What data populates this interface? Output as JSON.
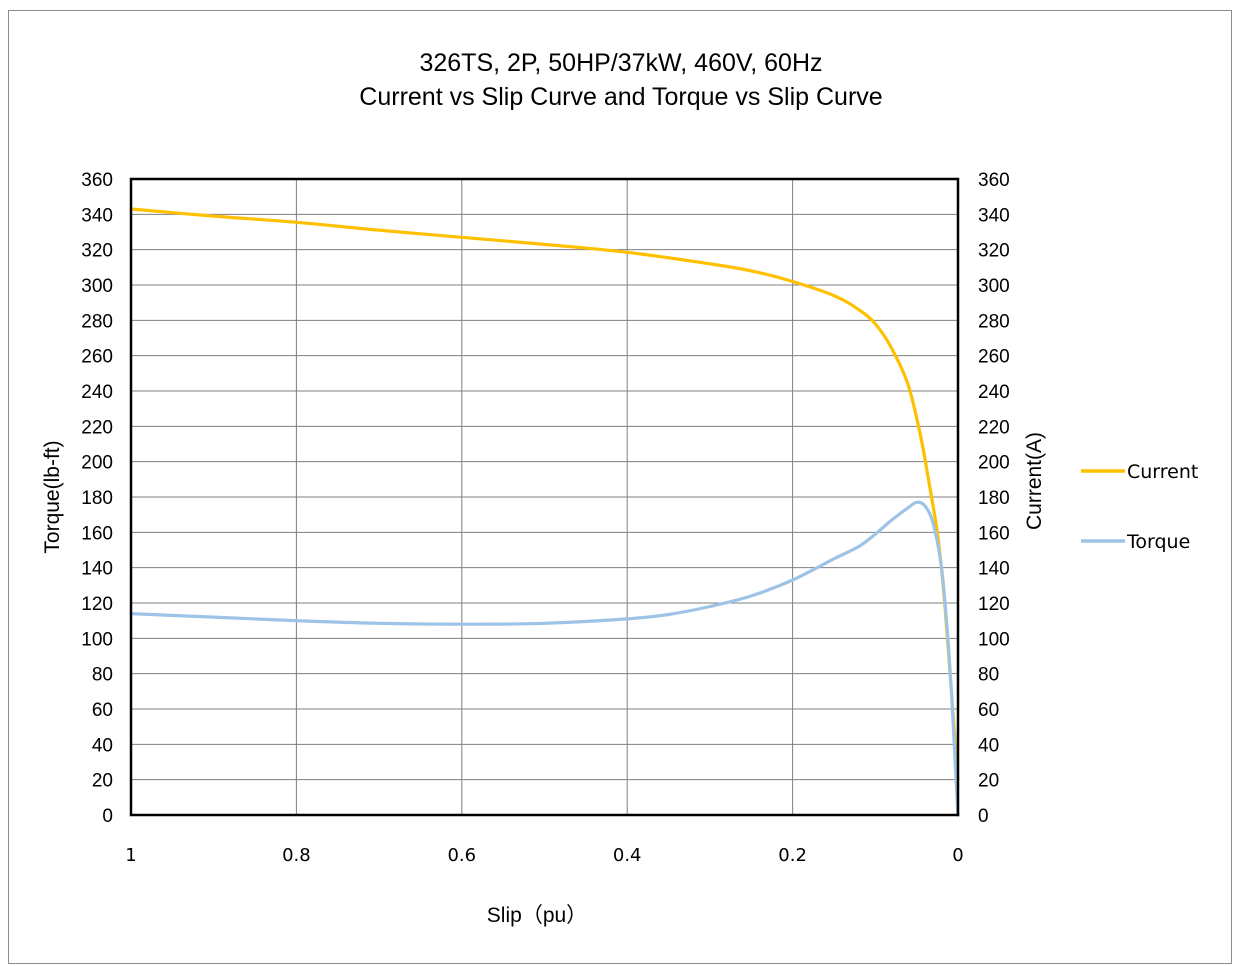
{
  "chart_data": {
    "type": "line",
    "title": [
      "326TS, 2P, 50HP/37kW, 460V, 60Hz",
      "Current vs Slip Curve and Torque vs Slip Curve"
    ],
    "xlabel": "Slip（pu）",
    "ylabel_left": "Torque(lb-ft)",
    "ylabel_right": "Current(A)",
    "xlim": [
      1,
      0
    ],
    "x_reversed": true,
    "ylim": [
      0,
      360
    ],
    "x_ticks": [
      "1",
      "0.8",
      "0.6",
      "0.4",
      "0.2",
      "0"
    ],
    "x_tick_values": [
      1,
      0.8,
      0.6,
      0.4,
      0.2,
      0
    ],
    "y_ticks": [
      "0",
      "20",
      "40",
      "60",
      "80",
      "100",
      "120",
      "140",
      "160",
      "180",
      "200",
      "220",
      "240",
      "260",
      "280",
      "300",
      "320",
      "340",
      "360"
    ],
    "grid": true,
    "legend_position": "right",
    "series": [
      {
        "name": "Current",
        "axis": "right",
        "color": "#FFC000",
        "points": [
          [
            1.0,
            343
          ],
          [
            0.9,
            339
          ],
          [
            0.8,
            335.5
          ],
          [
            0.7,
            331
          ],
          [
            0.6,
            327
          ],
          [
            0.5,
            323
          ],
          [
            0.4,
            318.5
          ],
          [
            0.3,
            312
          ],
          [
            0.25,
            308
          ],
          [
            0.2,
            302
          ],
          [
            0.15,
            294
          ],
          [
            0.12,
            286
          ],
          [
            0.1,
            278
          ],
          [
            0.08,
            264
          ],
          [
            0.06,
            243
          ],
          [
            0.045,
            214
          ],
          [
            0.035,
            188
          ],
          [
            0.025,
            160
          ],
          [
            0.018,
            130
          ],
          [
            0.012,
            95
          ],
          [
            0.008,
            70
          ],
          [
            0.004,
            45
          ],
          [
            0.001,
            25
          ],
          [
            0,
            20
          ]
        ]
      },
      {
        "name": "Torque",
        "axis": "left",
        "color": "#9DC3E6",
        "points": [
          [
            1.0,
            114
          ],
          [
            0.9,
            112
          ],
          [
            0.8,
            110
          ],
          [
            0.7,
            108.5
          ],
          [
            0.6,
            108
          ],
          [
            0.5,
            108.5
          ],
          [
            0.4,
            111
          ],
          [
            0.35,
            113.5
          ],
          [
            0.3,
            118
          ],
          [
            0.25,
            124
          ],
          [
            0.2,
            133
          ],
          [
            0.15,
            145
          ],
          [
            0.12,
            152
          ],
          [
            0.1,
            159
          ],
          [
            0.08,
            167
          ],
          [
            0.06,
            174
          ],
          [
            0.05,
            177
          ],
          [
            0.04,
            175
          ],
          [
            0.03,
            165
          ],
          [
            0.02,
            140
          ],
          [
            0.013,
            105
          ],
          [
            0.008,
            70
          ],
          [
            0.004,
            35
          ],
          [
            0.001,
            8
          ],
          [
            0,
            0
          ]
        ]
      }
    ]
  }
}
